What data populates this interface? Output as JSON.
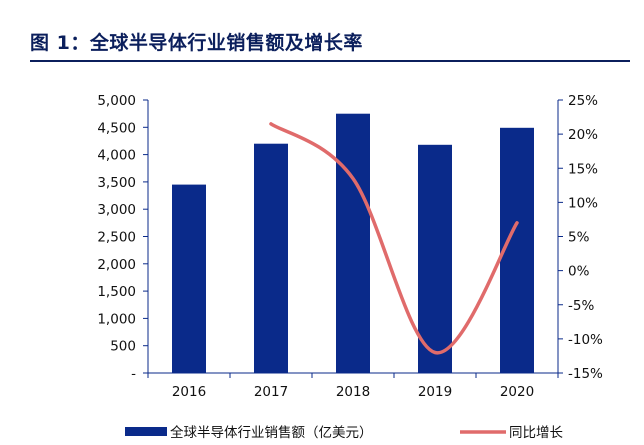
{
  "figure": {
    "title": "图 1：全球半导体行业销售额及增长率"
  },
  "colors": {
    "bar": "#0a2a8a",
    "line": "#e06b6b",
    "axis": "#0a2a8a",
    "title": "#0b1f5c"
  },
  "chart_data": {
    "type": "bar",
    "title": "",
    "categories": [
      "2016",
      "2017",
      "2018",
      "2019",
      "2020"
    ],
    "series": [
      {
        "name": "全球半导体行业销售额（亿美元）",
        "type": "bar",
        "axis": "left",
        "values": [
          3450,
          4200,
          4750,
          4180,
          4490
        ]
      },
      {
        "name": "同比增长",
        "type": "line",
        "axis": "right",
        "smooth": true,
        "values": [
          null,
          21.5,
          13.5,
          -12,
          7
        ]
      }
    ],
    "y_left": {
      "min": 0,
      "max": 5000,
      "ticks": [
        0,
        500,
        1000,
        1500,
        2000,
        2500,
        3000,
        3500,
        4000,
        4500,
        5000
      ],
      "tick_labels": [
        "-",
        "500",
        "1,000",
        "1,500",
        "2,000",
        "2,500",
        "3,000",
        "3,500",
        "4,000",
        "4,500",
        "5,000"
      ]
    },
    "y_right": {
      "min": -15,
      "max": 25,
      "ticks": [
        -15,
        -10,
        -5,
        0,
        5,
        10,
        15,
        20,
        25
      ],
      "tick_labels": [
        "-15%",
        "-10%",
        "-5%",
        "0%",
        "5%",
        "10%",
        "15%",
        "20%",
        "25%"
      ]
    },
    "grid": false,
    "legend_position": "bottom"
  }
}
